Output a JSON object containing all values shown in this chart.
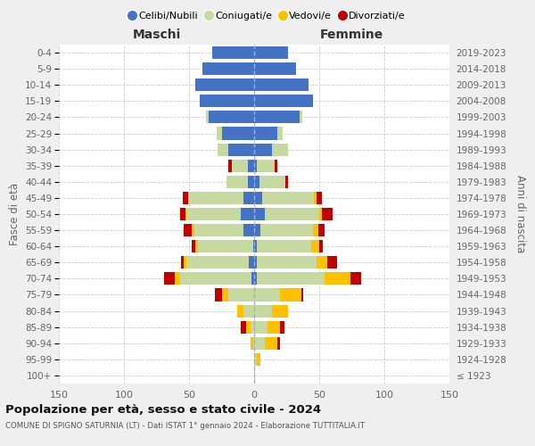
{
  "age_groups": [
    "100+",
    "95-99",
    "90-94",
    "85-89",
    "80-84",
    "75-79",
    "70-74",
    "65-69",
    "60-64",
    "55-59",
    "50-54",
    "45-49",
    "40-44",
    "35-39",
    "30-34",
    "25-29",
    "20-24",
    "15-19",
    "10-14",
    "5-9",
    "0-4"
  ],
  "birth_years": [
    "≤ 1923",
    "1924-1928",
    "1929-1933",
    "1934-1938",
    "1939-1943",
    "1944-1948",
    "1949-1953",
    "1954-1958",
    "1959-1963",
    "1964-1968",
    "1969-1973",
    "1974-1978",
    "1979-1983",
    "1984-1988",
    "1989-1993",
    "1994-1998",
    "1999-2003",
    "2004-2008",
    "2009-2013",
    "2014-2018",
    "2019-2023"
  ],
  "colors": {
    "celibi": "#4472c4",
    "coniugati": "#c5d9a0",
    "vedovi": "#ffc000",
    "divorziati": "#c00000"
  },
  "maschi": {
    "celibi": [
      0,
      0,
      0,
      0,
      0,
      0,
      2,
      4,
      1,
      8,
      10,
      8,
      5,
      5,
      20,
      25,
      35,
      42,
      45,
      40,
      32
    ],
    "coniugati": [
      0,
      0,
      1,
      3,
      8,
      20,
      55,
      48,
      42,
      38,
      42,
      42,
      16,
      12,
      8,
      4,
      2,
      0,
      0,
      0,
      0
    ],
    "vedovi": [
      0,
      0,
      2,
      3,
      5,
      5,
      4,
      2,
      2,
      2,
      1,
      1,
      0,
      0,
      0,
      0,
      0,
      0,
      0,
      0,
      0
    ],
    "divorziati": [
      0,
      0,
      0,
      4,
      0,
      5,
      8,
      2,
      3,
      6,
      4,
      4,
      0,
      3,
      0,
      0,
      0,
      0,
      0,
      0,
      0
    ]
  },
  "femmine": {
    "celibi": [
      0,
      0,
      0,
      0,
      0,
      0,
      2,
      2,
      2,
      5,
      8,
      6,
      4,
      2,
      14,
      18,
      35,
      45,
      42,
      32,
      26
    ],
    "coniugati": [
      0,
      2,
      8,
      10,
      14,
      20,
      52,
      46,
      42,
      40,
      42,
      40,
      20,
      14,
      12,
      4,
      2,
      0,
      0,
      0,
      0
    ],
    "vedovi": [
      1,
      3,
      10,
      10,
      12,
      16,
      20,
      8,
      6,
      4,
      2,
      2,
      0,
      0,
      0,
      0,
      0,
      0,
      0,
      0,
      0
    ],
    "divorziati": [
      0,
      0,
      2,
      3,
      0,
      2,
      8,
      8,
      3,
      5,
      8,
      4,
      2,
      2,
      0,
      0,
      0,
      0,
      0,
      0,
      0
    ]
  },
  "xlim": 150,
  "title": "Popolazione per età, sesso e stato civile - 2024",
  "subtitle": "COMUNE DI SPIGNO SATURNIA (LT) - Dati ISTAT 1° gennaio 2024 - Elaborazione TUTTITALIA.IT",
  "ylabel_left": "Fasce di età",
  "ylabel_right": "Anni di nascita",
  "header_maschi": "Maschi",
  "header_femmine": "Femmine",
  "legend_labels": [
    "Celibi/Nubili",
    "Coniugati/e",
    "Vedovi/e",
    "Divorziati/e"
  ],
  "background_color": "#efefef",
  "plot_background": "#ffffff",
  "xtick_labels": [
    "150",
    "100",
    "50",
    "0",
    "50",
    "100",
    "150"
  ]
}
